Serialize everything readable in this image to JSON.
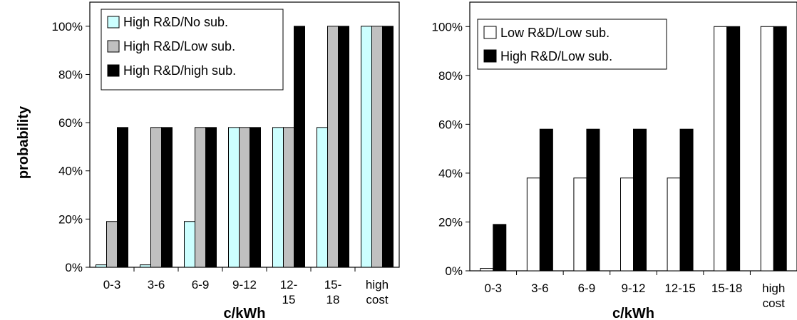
{
  "shared": {
    "ylabel": "probability"
  },
  "chart_data": [
    {
      "type": "bar",
      "xlabel": "c/kWh",
      "categories": [
        [
          "0-3"
        ],
        [
          "3-6"
        ],
        [
          "6-9"
        ],
        [
          "9-12"
        ],
        [
          "12-",
          "15"
        ],
        [
          "15-",
          "18"
        ],
        [
          "high",
          "cost"
        ]
      ],
      "yticks": [
        "0%",
        "20%",
        "40%",
        "60%",
        "80%",
        "100%"
      ],
      "ylim": [
        0,
        1.1
      ],
      "legend_position": "top-left",
      "series": [
        {
          "name": "High R&D/No sub.",
          "color": "#ccffff",
          "values": [
            0.01,
            0.01,
            0.19,
            0.58,
            0.58,
            0.58,
            1.0
          ]
        },
        {
          "name": "High R&D/Low sub.",
          "color": "#c0c0c0",
          "values": [
            0.19,
            0.58,
            0.58,
            0.58,
            0.58,
            1.0,
            1.0
          ]
        },
        {
          "name": "High R&D/high sub.",
          "color": "#000000",
          "values": [
            0.58,
            0.58,
            0.58,
            0.58,
            1.0,
            1.0,
            1.0
          ]
        }
      ]
    },
    {
      "type": "bar",
      "xlabel": "c/kWh",
      "categories": [
        [
          "0-3"
        ],
        [
          "3-6"
        ],
        [
          "6-9"
        ],
        [
          "9-12"
        ],
        [
          "12-15"
        ],
        [
          "15-18"
        ],
        [
          "high",
          "cost"
        ]
      ],
      "yticks": [
        "0%",
        "20%",
        "40%",
        "60%",
        "80%",
        "100%"
      ],
      "ylim": [
        0,
        1.1
      ],
      "legend_position": "top-left",
      "series": [
        {
          "name": "Low R&D/Low sub.",
          "color": "#ffffff",
          "values": [
            0.01,
            0.38,
            0.38,
            0.38,
            0.38,
            1.0,
            1.0
          ]
        },
        {
          "name": "High R&D/Low sub.",
          "color": "#000000",
          "values": [
            0.19,
            0.58,
            0.58,
            0.58,
            0.58,
            1.0,
            1.0
          ]
        }
      ]
    }
  ]
}
